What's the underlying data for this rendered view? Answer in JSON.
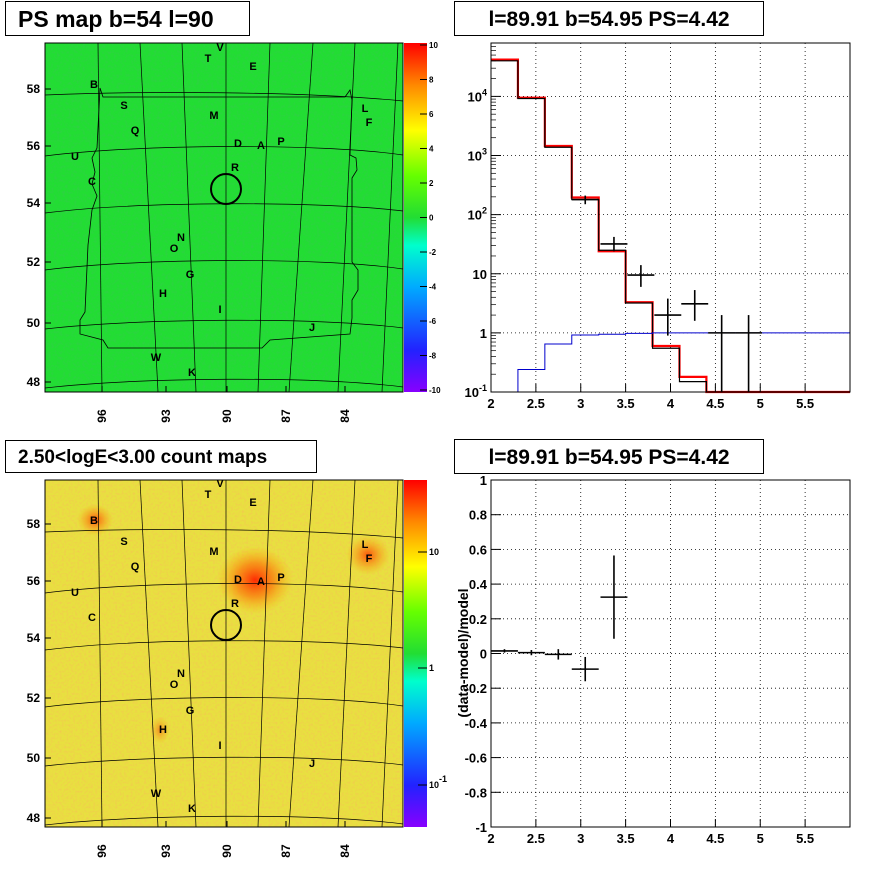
{
  "panels": {
    "ps_map": {
      "title": "PS map b=54 l=90"
    },
    "count_map": {
      "title": "2.50<logE<3.00 count maps"
    },
    "spectrum": {
      "title": "l=89.91 b=54.95 PS=4.42"
    },
    "residual": {
      "title": "l=89.91 b=54.95 PS=4.42"
    }
  },
  "chart_data": [
    {
      "type": "heatmap",
      "name": "ps-map",
      "title": "PS map b=54 l=90",
      "xlabel": "",
      "ylabel": "",
      "x_ticks": [
        "96",
        "93",
        "90",
        "87",
        "84"
      ],
      "y_ticks": [
        "48",
        "50",
        "52",
        "54",
        "56",
        "58"
      ],
      "colorbar": {
        "scale": "linear",
        "range": [
          -10,
          10
        ],
        "ticks": [
          "10",
          "8",
          "6",
          "4",
          "2",
          "0",
          "-2",
          "-4",
          "-6",
          "-8",
          "-10"
        ]
      },
      "source_labels": [
        "V",
        "T",
        "E",
        "B",
        "S",
        "M",
        "L",
        "F",
        "Q",
        "D",
        "A",
        "P",
        "U",
        "R",
        "C",
        "N",
        "O",
        "G",
        "H",
        "I",
        "J",
        "W",
        "K"
      ],
      "marker": {
        "l": 90,
        "b": 54.5,
        "symbol": "circle"
      },
      "dominant_color": "#22dd33"
    },
    {
      "type": "heatmap",
      "name": "count-map",
      "title": "2.50<logE<3.00 count maps",
      "xlabel": "",
      "ylabel": "",
      "x_ticks": [
        "96",
        "93",
        "90",
        "87",
        "84"
      ],
      "y_ticks": [
        "48",
        "50",
        "52",
        "54",
        "56",
        "58"
      ],
      "colorbar": {
        "scale": "log",
        "ticks": [
          "10",
          "1",
          "10^-1"
        ]
      },
      "source_labels": [
        "V",
        "T",
        "E",
        "B",
        "S",
        "M",
        "L",
        "F",
        "Q",
        "D",
        "A",
        "P",
        "U",
        "R",
        "C",
        "N",
        "O",
        "G",
        "H",
        "I",
        "J",
        "W",
        "K"
      ],
      "marker": {
        "l": 90,
        "b": 54.5,
        "symbol": "circle"
      },
      "dominant_color": "#e8e040"
    },
    {
      "type": "line",
      "name": "spectrum",
      "title": "l=89.91 b=54.95 PS=4.42",
      "xlabel": "",
      "ylabel": "",
      "xlim": [
        2,
        6
      ],
      "ylim": [
        0.1,
        80000
      ],
      "yscale": "log",
      "x_ticks": [
        "2",
        "2.5",
        "3",
        "3.5",
        "4",
        "4.5",
        "5",
        "5.5"
      ],
      "y_ticks": [
        "10^-1",
        "1",
        "10",
        "10^2",
        "10^3",
        "10^4"
      ],
      "grid": true,
      "bin_edges": [
        2.0,
        2.3,
        2.6,
        2.9,
        3.2,
        3.5,
        3.8,
        4.1,
        4.4,
        4.7,
        5.0,
        6.0
      ],
      "series": [
        {
          "style": "step",
          "color": "#ff0000",
          "values": [
            42000,
            9500,
            1450,
            195,
            24,
            3.3,
            0.6,
            0.18,
            0.1,
            0.1,
            0.1
          ]
        },
        {
          "style": "step",
          "color": "#000000",
          "values": [
            40000,
            9200,
            1380,
            180,
            25,
            3.2,
            0.55,
            0.15,
            0.08,
            0.08,
            0.08
          ]
        },
        {
          "style": "step",
          "color": "#0000cc",
          "values": [
            0.05,
            0.24,
            0.65,
            0.92,
            0.95,
            0.98,
            1.0,
            1.0,
            1.0,
            1.0,
            1.0
          ]
        },
        {
          "style": "errorbar",
          "color": "#000000",
          "points": [
            {
              "x": 3.05,
              "y": 180,
              "xerr": 0.15,
              "ylo": 150,
              "yhi": 210
            },
            {
              "x": 3.37,
              "y": 32,
              "xerr": 0.15,
              "ylo": 24,
              "yhi": 42
            },
            {
              "x": 3.67,
              "y": 9.5,
              "xerr": 0.15,
              "ylo": 6,
              "yhi": 14
            },
            {
              "x": 3.97,
              "y": 2.0,
              "xerr": 0.15,
              "ylo": 0.9,
              "yhi": 3.8
            },
            {
              "x": 4.27,
              "y": 3.1,
              "xerr": 0.15,
              "ylo": 1.6,
              "yhi": 5.3
            },
            {
              "x": 4.57,
              "y": 1.0,
              "xerr": 0.15,
              "ylo": 0.1,
              "yhi": 2.0
            },
            {
              "x": 4.87,
              "y": 1.0,
              "xerr": 0.15,
              "ylo": 0.1,
              "yhi": 2.0
            }
          ]
        }
      ]
    },
    {
      "type": "scatter",
      "name": "residual",
      "title": "l=89.91 b=54.95 PS=4.42",
      "xlabel": "",
      "ylabel": "(data-model)/model",
      "xlim": [
        2,
        6
      ],
      "ylim": [
        -1,
        1
      ],
      "x_ticks": [
        "2",
        "2.5",
        "3",
        "3.5",
        "4",
        "4.5",
        "5",
        "5.5"
      ],
      "y_ticks": [
        "-1",
        "-0.8",
        "-0.6",
        "-0.4",
        "-0.2",
        "0",
        "0.2",
        "0.4",
        "0.6",
        "0.8",
        "1"
      ],
      "grid": true,
      "points": [
        {
          "x": 2.15,
          "y": 0.015,
          "xerr": 0.15,
          "yerr": 0.01
        },
        {
          "x": 2.45,
          "y": 0.005,
          "xerr": 0.15,
          "yerr": 0.015
        },
        {
          "x": 2.75,
          "y": -0.005,
          "xerr": 0.15,
          "yerr": 0.03
        },
        {
          "x": 3.05,
          "y": -0.09,
          "xerr": 0.15,
          "yerr": 0.07
        },
        {
          "x": 3.37,
          "y": 0.325,
          "xerr": 0.15,
          "yerr": 0.24
        }
      ]
    }
  ]
}
